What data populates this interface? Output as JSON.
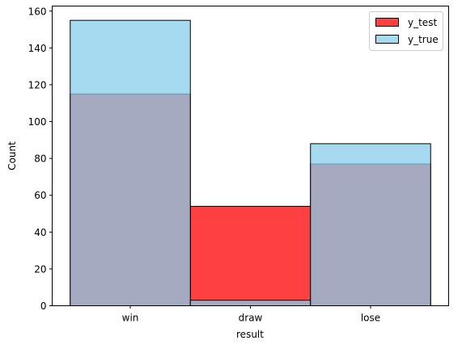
{
  "chart_data": {
    "type": "bar",
    "categories": [
      "win",
      "draw",
      "lose"
    ],
    "series": [
      {
        "name": "y_test",
        "values": [
          115,
          54,
          77
        ],
        "color": "#ff0000",
        "opacity": 0.75
      },
      {
        "name": "y_true",
        "values": [
          155,
          3,
          88
        ],
        "color": "#87ceeb",
        "opacity": 0.75
      }
    ],
    "overlap_color": "#a6a9bd",
    "xlabel": "result",
    "ylabel": "Count",
    "ylim": [
      0,
      162.75
    ],
    "yticks": [
      0,
      20,
      40,
      60,
      80,
      100,
      120,
      140,
      160
    ],
    "grid": false,
    "legend": "top-right"
  }
}
